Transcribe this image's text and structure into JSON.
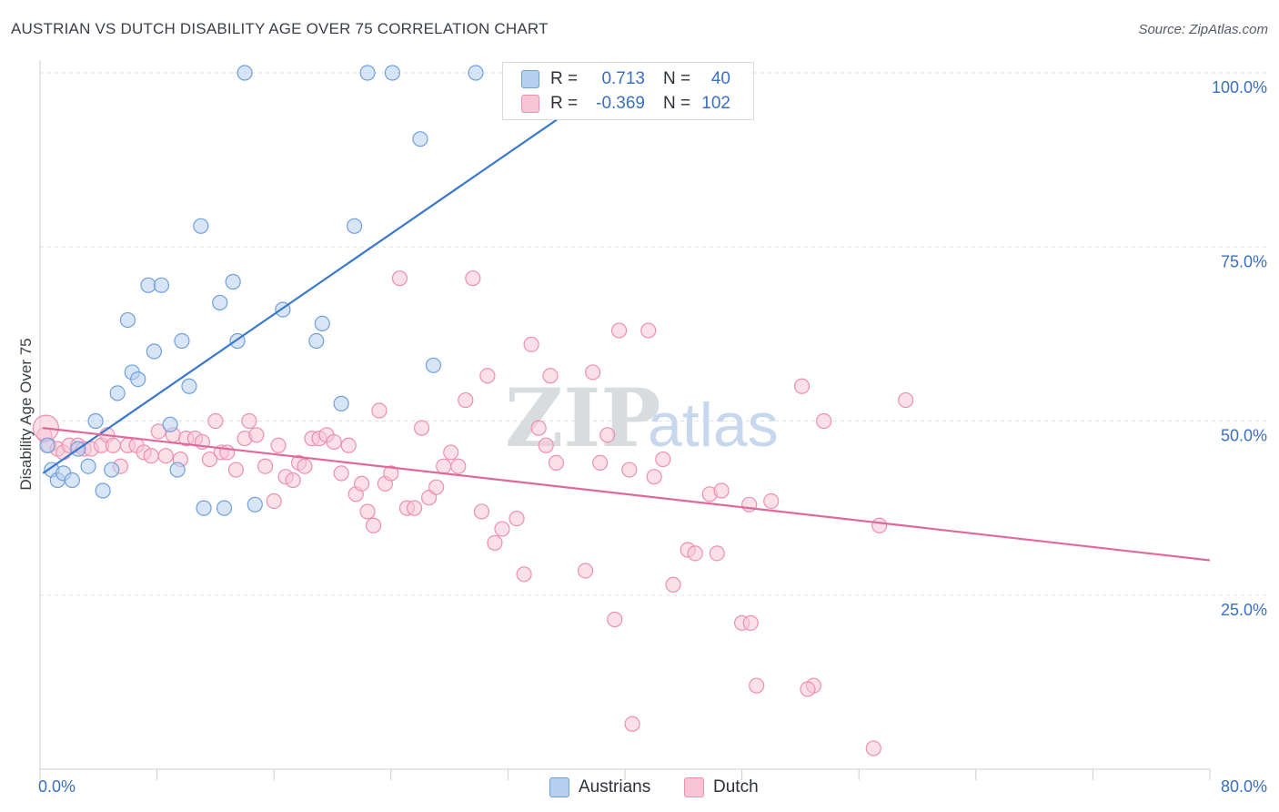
{
  "title": "AUSTRIAN VS DUTCH DISABILITY AGE OVER 75 CORRELATION CHART",
  "source": "Source: ZipAtlas.com",
  "watermark": {
    "zip": "ZIP",
    "atlas": "atlas"
  },
  "legend": {
    "rows": [
      {
        "r_label": "R =",
        "r_value": "0.713",
        "n_label": "N =",
        "n_value": "40",
        "color": "#6fa0dc"
      },
      {
        "r_label": "R =",
        "r_value": "-0.369",
        "n_label": "N =",
        "n_value": "102",
        "color": "#ec8fb0"
      }
    ]
  },
  "chart_data": {
    "type": "scatter",
    "title": "AUSTRIAN VS DUTCH DISABILITY AGE OVER 75 CORRELATION CHART",
    "xlabel": "",
    "ylabel": "Disability Age Over 75",
    "xlim": [
      0,
      80
    ],
    "ylim": [
      0,
      100
    ],
    "x_tick_labels": {
      "left": "0.0%",
      "right": "80.0%"
    },
    "y_tick_labels": [
      "100.0%",
      "75.0%",
      "50.0%",
      "25.0%"
    ],
    "y_tick_values": [
      100,
      75,
      50,
      25
    ],
    "grid": "horizontal dashed",
    "legend_position": "bottom",
    "series": [
      {
        "name": "Austrians",
        "color": "#6fa0dc",
        "fill": "#b8d0f0",
        "r": 0.713,
        "n": 40,
        "trend": {
          "x": [
            0.2,
            40.0
          ],
          "y": [
            42.5,
            100.0
          ]
        },
        "points": [
          [
            0.5,
            46.5
          ],
          [
            0.8,
            43
          ],
          [
            1.2,
            41.5
          ],
          [
            1.6,
            42.5
          ],
          [
            2.2,
            41.5
          ],
          [
            2.6,
            46
          ],
          [
            3.3,
            43.5
          ],
          [
            3.8,
            50
          ],
          [
            4.3,
            40
          ],
          [
            4.9,
            43
          ],
          [
            5.3,
            54
          ],
          [
            6.0,
            64.5
          ],
          [
            6.3,
            57
          ],
          [
            6.7,
            56
          ],
          [
            7.4,
            69.5
          ],
          [
            7.8,
            60
          ],
          [
            8.3,
            69.5
          ],
          [
            8.9,
            49.5
          ],
          [
            9.4,
            43
          ],
          [
            9.7,
            61.5
          ],
          [
            10.2,
            55
          ],
          [
            11.0,
            78
          ],
          [
            11.2,
            37.5
          ],
          [
            12.3,
            67
          ],
          [
            12.6,
            37.5
          ],
          [
            13.2,
            70
          ],
          [
            13.5,
            61.5
          ],
          [
            14.0,
            100
          ],
          [
            14.7,
            38
          ],
          [
            16.6,
            66
          ],
          [
            18.9,
            61.5
          ],
          [
            19.3,
            64
          ],
          [
            20.6,
            52.5
          ],
          [
            21.5,
            78
          ],
          [
            22.4,
            100
          ],
          [
            24.1,
            100
          ],
          [
            26.0,
            90.5
          ],
          [
            26.9,
            58
          ],
          [
            29.8,
            100
          ],
          [
            43.0,
            100
          ]
        ]
      },
      {
        "name": "Dutch",
        "color": "#ec8fb0",
        "fill": "#f7c6d6",
        "r": -0.369,
        "n": 102,
        "trend": {
          "x": [
            0.2,
            80.0
          ],
          "y": [
            49.0,
            30.0
          ]
        },
        "points": [
          [
            0.3,
            48
          ],
          [
            0.6,
            46.5
          ],
          [
            1.2,
            46
          ],
          [
            1.6,
            45.5
          ],
          [
            2.0,
            46.5
          ],
          [
            2.6,
            46.5
          ],
          [
            3.0,
            46
          ],
          [
            3.5,
            46
          ],
          [
            4.2,
            46.5
          ],
          [
            4.6,
            48
          ],
          [
            5.0,
            46.5
          ],
          [
            5.5,
            43.5
          ],
          [
            6.0,
            46.5
          ],
          [
            6.6,
            46.5
          ],
          [
            7.1,
            45.5
          ],
          [
            7.6,
            45
          ],
          [
            8.1,
            48.5
          ],
          [
            8.6,
            45
          ],
          [
            9.1,
            48
          ],
          [
            9.6,
            44.5
          ],
          [
            10.0,
            47.5
          ],
          [
            10.6,
            47.5
          ],
          [
            11.1,
            47
          ],
          [
            11.6,
            44.5
          ],
          [
            12.0,
            50
          ],
          [
            12.4,
            45.5
          ],
          [
            12.8,
            45.5
          ],
          [
            13.4,
            43
          ],
          [
            14.0,
            47.5
          ],
          [
            14.3,
            50
          ],
          [
            14.8,
            48
          ],
          [
            15.4,
            43.5
          ],
          [
            16.0,
            38.5
          ],
          [
            16.3,
            46.5
          ],
          [
            16.8,
            42
          ],
          [
            17.3,
            41.5
          ],
          [
            17.7,
            44
          ],
          [
            18.1,
            43.5
          ],
          [
            18.6,
            47.5
          ],
          [
            19.1,
            47.5
          ],
          [
            19.6,
            48
          ],
          [
            20.1,
            47
          ],
          [
            20.6,
            42.5
          ],
          [
            21.1,
            46.5
          ],
          [
            21.6,
            39.5
          ],
          [
            22.0,
            41
          ],
          [
            22.4,
            37
          ],
          [
            22.8,
            35
          ],
          [
            23.2,
            51.5
          ],
          [
            23.6,
            41
          ],
          [
            24.0,
            42.5
          ],
          [
            24.6,
            70.5
          ],
          [
            25.1,
            37.5
          ],
          [
            25.6,
            37.5
          ],
          [
            26.1,
            49
          ],
          [
            26.6,
            39
          ],
          [
            27.1,
            40.5
          ],
          [
            27.6,
            43.5
          ],
          [
            28.1,
            45.5
          ],
          [
            28.6,
            43.5
          ],
          [
            29.1,
            53
          ],
          [
            29.6,
            70.5
          ],
          [
            30.2,
            37
          ],
          [
            30.6,
            56.5
          ],
          [
            31.1,
            32.5
          ],
          [
            31.6,
            34.5
          ],
          [
            32.6,
            36
          ],
          [
            33.1,
            28
          ],
          [
            33.6,
            61
          ],
          [
            34.1,
            49
          ],
          [
            34.6,
            46.5
          ],
          [
            34.9,
            56.5
          ],
          [
            35.3,
            44
          ],
          [
            37.3,
            28.5
          ],
          [
            37.8,
            57
          ],
          [
            38.3,
            44
          ],
          [
            38.8,
            48
          ],
          [
            39.3,
            21.5
          ],
          [
            39.6,
            63
          ],
          [
            40.3,
            43
          ],
          [
            41.6,
            63
          ],
          [
            42.0,
            42
          ],
          [
            42.6,
            44.5
          ],
          [
            43.3,
            26.5
          ],
          [
            44.3,
            31.5
          ],
          [
            44.8,
            31
          ],
          [
            45.8,
            39.5
          ],
          [
            46.3,
            31
          ],
          [
            46.6,
            40
          ],
          [
            48.0,
            21
          ],
          [
            48.6,
            21
          ],
          [
            49.0,
            12
          ],
          [
            50.0,
            38.5
          ],
          [
            52.1,
            55
          ],
          [
            52.9,
            12
          ],
          [
            53.6,
            50
          ],
          [
            57.4,
            35
          ],
          [
            59.2,
            53
          ],
          [
            40.5,
            6.5
          ],
          [
            57.0,
            3
          ],
          [
            52.5,
            11.5
          ],
          [
            48.5,
            38
          ]
        ]
      }
    ]
  }
}
